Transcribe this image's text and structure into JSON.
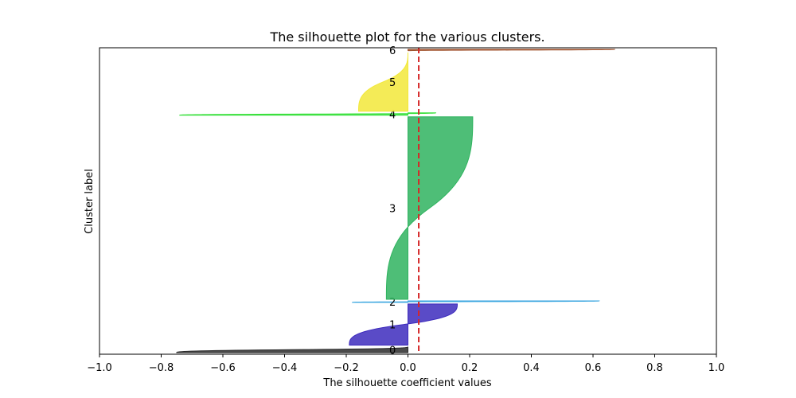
{
  "chart_data": {
    "type": "area",
    "title": "The silhouette plot for the various clusters.",
    "xlabel": "The silhouette coefficient values",
    "ylabel": "Cluster label",
    "xlim": [
      -1.0,
      1.0
    ],
    "xticks": [
      -1.0,
      -0.8,
      -0.6,
      -0.4,
      -0.2,
      0.0,
      0.2,
      0.4,
      0.6,
      0.8,
      1.0
    ],
    "xtick_labels": [
      "−1.0",
      "−0.8",
      "−0.6",
      "−0.4",
      "−0.2",
      "0.0",
      "0.2",
      "0.4",
      "0.6",
      "0.8",
      "1.0"
    ],
    "grid": false,
    "average_silhouette": 0.035,
    "average_line_color": "#d62728",
    "cluster_labels": [
      "0",
      "1",
      "2",
      "3",
      "4",
      "5",
      "6"
    ],
    "clusters": [
      {
        "label": "0",
        "color": "#2b2b2b",
        "min": -0.75,
        "max": 0.0,
        "size_share": 0.02
      },
      {
        "label": "1",
        "color": "#3d2bbd",
        "min": -0.19,
        "max": 0.16,
        "size_share": 0.14
      },
      {
        "label": "2",
        "color": "#3aa6e0",
        "min": -0.18,
        "max": 0.62,
        "size_share": 0.005
      },
      {
        "label": "3",
        "color": "#2fb35f",
        "min": -0.07,
        "max": 0.21,
        "size_share": 0.62
      },
      {
        "label": "4",
        "color": "#37e03a",
        "min": -0.74,
        "max": 0.09,
        "size_share": 0.008
      },
      {
        "label": "5",
        "color": "#f2e83a",
        "min": -0.16,
        "max": 0.0,
        "size_share": 0.2
      },
      {
        "label": "6",
        "color": "#a0522d",
        "min": 0.0,
        "max": 0.67,
        "size_share": 0.005
      }
    ]
  }
}
